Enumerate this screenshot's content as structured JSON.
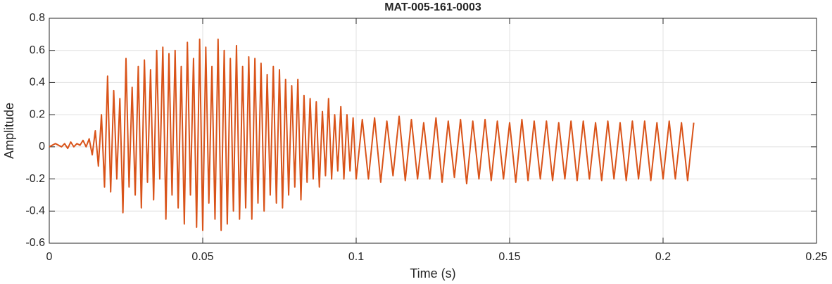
{
  "chart_data": {
    "type": "line",
    "title": "MAT-005-161-0003",
    "x_label": "Time (s)",
    "y_label": "Amplitude",
    "xlim": [
      0,
      0.25
    ],
    "ylim": [
      -0.6,
      0.8
    ],
    "xticks": [
      0,
      0.05,
      0.1,
      0.15,
      0.2,
      0.25
    ],
    "yticks": [
      -0.6,
      -0.4,
      -0.2,
      0,
      0.2,
      0.4,
      0.6,
      0.8
    ],
    "grid": true,
    "x": [
      0,
      0.001,
      0.002,
      0.003,
      0.004,
      0.005,
      0.006,
      0.007,
      0.008,
      0.009,
      0.01,
      0.011,
      0.012,
      0.013,
      0.014,
      0.015,
      0.016,
      0.017,
      0.018,
      0.019,
      0.02,
      0.021,
      0.022,
      0.023,
      0.024,
      0.025,
      0.026,
      0.027,
      0.028,
      0.029,
      0.03,
      0.031,
      0.032,
      0.033,
      0.034,
      0.035,
      0.036,
      0.037,
      0.038,
      0.039,
      0.04,
      0.041,
      0.042,
      0.043,
      0.044,
      0.045,
      0.046,
      0.047,
      0.048,
      0.049,
      0.05,
      0.051,
      0.052,
      0.053,
      0.054,
      0.055,
      0.056,
      0.057,
      0.058,
      0.059,
      0.06,
      0.061,
      0.062,
      0.063,
      0.064,
      0.065,
      0.066,
      0.067,
      0.068,
      0.069,
      0.07,
      0.071,
      0.072,
      0.073,
      0.074,
      0.075,
      0.076,
      0.077,
      0.078,
      0.079,
      0.08,
      0.081,
      0.082,
      0.083,
      0.084,
      0.085,
      0.086,
      0.087,
      0.088,
      0.089,
      0.09,
      0.091,
      0.092,
      0.093,
      0.094,
      0.095,
      0.096,
      0.097,
      0.098,
      0.099,
      0.1,
      0.102,
      0.104,
      0.106,
      0.108,
      0.11,
      0.112,
      0.114,
      0.116,
      0.118,
      0.12,
      0.122,
      0.124,
      0.126,
      0.128,
      0.13,
      0.132,
      0.134,
      0.136,
      0.138,
      0.14,
      0.142,
      0.144,
      0.146,
      0.148,
      0.15,
      0.152,
      0.154,
      0.156,
      0.158,
      0.16,
      0.162,
      0.164,
      0.166,
      0.168,
      0.17,
      0.172,
      0.174,
      0.176,
      0.178,
      0.18,
      0.182,
      0.184,
      0.186,
      0.188,
      0.19,
      0.192,
      0.194,
      0.196,
      0.198,
      0.2,
      0.202,
      0.204,
      0.206,
      0.208,
      0.21
    ],
    "series": [
      {
        "color": "#d95319",
        "values": [
          0,
          0.01,
          0.02,
          0.01,
          0,
          0.02,
          -0.01,
          0.03,
          0,
          0.02,
          0.01,
          0.04,
          0,
          0.05,
          -0.05,
          0.1,
          -0.12,
          0.2,
          -0.25,
          0.44,
          -0.28,
          0.35,
          -0.2,
          0.3,
          -0.41,
          0.55,
          -0.25,
          0.37,
          -0.3,
          0.5,
          -0.38,
          0.54,
          -0.22,
          0.48,
          -0.33,
          0.6,
          -0.2,
          0.62,
          -0.45,
          0.58,
          -0.3,
          0.6,
          -0.38,
          0.5,
          -0.48,
          0.65,
          -0.3,
          0.55,
          -0.5,
          0.67,
          -0.52,
          0.62,
          -0.35,
          0.5,
          -0.45,
          0.67,
          -0.52,
          0.6,
          -0.48,
          0.55,
          -0.4,
          0.63,
          -0.45,
          0.5,
          -0.38,
          0.56,
          -0.45,
          0.55,
          -0.35,
          0.52,
          -0.4,
          0.45,
          -0.3,
          0.5,
          -0.35,
          0.48,
          -0.38,
          0.42,
          -0.3,
          0.38,
          -0.25,
          0.42,
          -0.33,
          0.32,
          -0.22,
          0.3,
          -0.2,
          0.28,
          -0.25,
          0.22,
          -0.18,
          0.3,
          -0.2,
          0.2,
          -0.15,
          0.25,
          -0.2,
          0.2,
          -0.15,
          0.18,
          -0.2,
          0.17,
          -0.2,
          0.18,
          -0.22,
          0.16,
          -0.18,
          0.19,
          -0.21,
          0.17,
          -0.2,
          0.15,
          -0.2,
          0.18,
          -0.22,
          0.16,
          -0.19,
          0.17,
          -0.23,
          0.16,
          -0.2,
          0.17,
          -0.21,
          0.16,
          -0.2,
          0.15,
          -0.22,
          0.17,
          -0.21,
          0.16,
          -0.2,
          0.16,
          -0.21,
          0.15,
          -0.2,
          0.16,
          -0.21,
          0.16,
          -0.2,
          0.15,
          -0.21,
          0.16,
          -0.2,
          0.15,
          -0.21,
          0.16,
          -0.2,
          0.16,
          -0.21,
          0.15,
          -0.2,
          0.16,
          -0.2,
          0.15,
          -0.21,
          0.15
        ]
      }
    ]
  }
}
